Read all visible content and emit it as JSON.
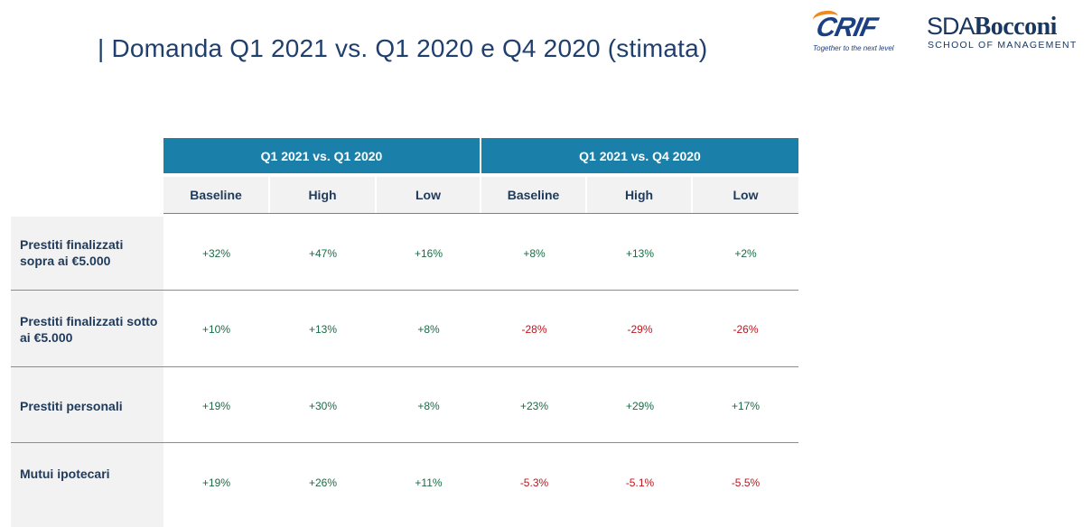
{
  "title": "| Domanda Q1 2021 vs. Q1 2020 e Q4 2020 (stimata)",
  "logos": {
    "crif_word": "CRIF",
    "crif_tagline": "Together to the next level",
    "sda_prefix": "SDA",
    "sda_name": "Bocconi",
    "sda_subtitle": "SCHOOL OF MANAGEMENT"
  },
  "colors": {
    "header_bg": "#1a80aa",
    "positive": "#1a6b45",
    "negative": "#c0141c"
  },
  "table": {
    "groups": [
      "Q1 2021 vs. Q1 2020",
      "Q1 2021 vs. Q4 2020"
    ],
    "columns": [
      "Baseline",
      "High",
      "Low",
      "Baseline",
      "High",
      "Low"
    ],
    "rows": [
      {
        "label": "Prestiti finalizzati sopra ai €5.000",
        "values": [
          "+32%",
          "+47%",
          "+16%",
          "+8%",
          "+13%",
          "+2%"
        ]
      },
      {
        "label": "Prestiti finalizzati sotto ai €5.000",
        "values": [
          "+10%",
          "+13%",
          "+8%",
          "-28%",
          "-29%",
          "-26%"
        ]
      },
      {
        "label": "Prestiti personali",
        "values": [
          "+19%",
          "+30%",
          "+8%",
          "+23%",
          "+29%",
          "+17%"
        ]
      },
      {
        "label": "Mutui ipotecari",
        "values": [
          "+19%",
          "+26%",
          "+11%",
          "-5.3%",
          "-5.1%",
          "-5.5%"
        ]
      }
    ]
  }
}
